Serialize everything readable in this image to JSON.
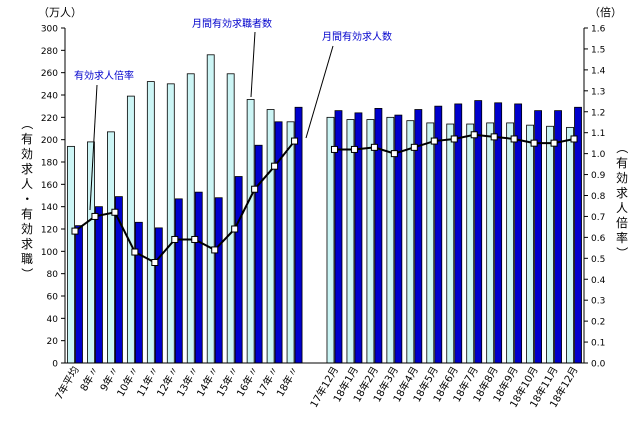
{
  "chart_data": {
    "type": "bar",
    "left_axis": {
      "unit": "（万人）",
      "label": "（有効求人・有効求職）",
      "range": [
        0,
        300
      ],
      "ticks": [
        0,
        20,
        40,
        60,
        80,
        100,
        120,
        140,
        160,
        180,
        200,
        220,
        240,
        260,
        280,
        300
      ]
    },
    "right_axis": {
      "unit": "（倍）",
      "label": "（有効求人倍率）",
      "range": [
        0.0,
        1.6
      ],
      "ticks": [
        "0.0",
        "0.1",
        "0.2",
        "0.3",
        "0.4",
        "0.5",
        "0.6",
        "0.7",
        "0.8",
        "0.9",
        "1.0",
        "1.1",
        "1.2",
        "1.3",
        "1.4",
        "1.5",
        "1.6"
      ]
    },
    "categories": [
      "7年平均",
      "8年〃",
      "9年〃",
      "10年〃",
      "11年〃",
      "12年〃",
      "13年〃",
      "14年〃",
      "15年〃",
      "16年〃",
      "17年〃",
      "18年〃",
      "",
      "17年12月",
      "18年1月",
      "18年2月",
      "18年3月",
      "18年4月",
      "18年5月",
      "18年6月",
      "18年7月",
      "18年8月",
      "18年9月",
      "18年10月",
      "18年11月",
      "18年12月"
    ],
    "series": [
      {
        "name": "月間有効求職者数",
        "kind": "bar",
        "color": "#ccf5f5",
        "stroke": "#000000",
        "values": [
          194,
          198,
          207,
          239,
          252,
          250,
          259,
          276,
          259,
          236,
          227,
          216,
          null,
          220,
          218,
          218,
          220,
          217,
          215,
          214,
          214,
          215,
          215,
          213,
          212,
          211
        ]
      },
      {
        "name": "月間有効求人数",
        "kind": "bar",
        "color": "#0000cc",
        "stroke": "#000000",
        "values": [
          123,
          140,
          149,
          126,
          121,
          147,
          153,
          148,
          167,
          195,
          216,
          229,
          null,
          226,
          224,
          228,
          222,
          227,
          230,
          232,
          235,
          233,
          232,
          226,
          226,
          229
        ]
      },
      {
        "name": "有効求人倍率",
        "kind": "line",
        "axis": "right",
        "color": "#000000",
        "values": [
          0.63,
          0.7,
          0.72,
          0.53,
          0.48,
          0.59,
          0.59,
          0.54,
          0.64,
          0.83,
          0.94,
          1.06,
          null,
          1.02,
          1.02,
          1.03,
          1.0,
          1.03,
          1.06,
          1.07,
          1.09,
          1.08,
          1.07,
          1.05,
          1.05,
          1.07
        ]
      }
    ],
    "grid": false,
    "legend": "callout labels"
  }
}
